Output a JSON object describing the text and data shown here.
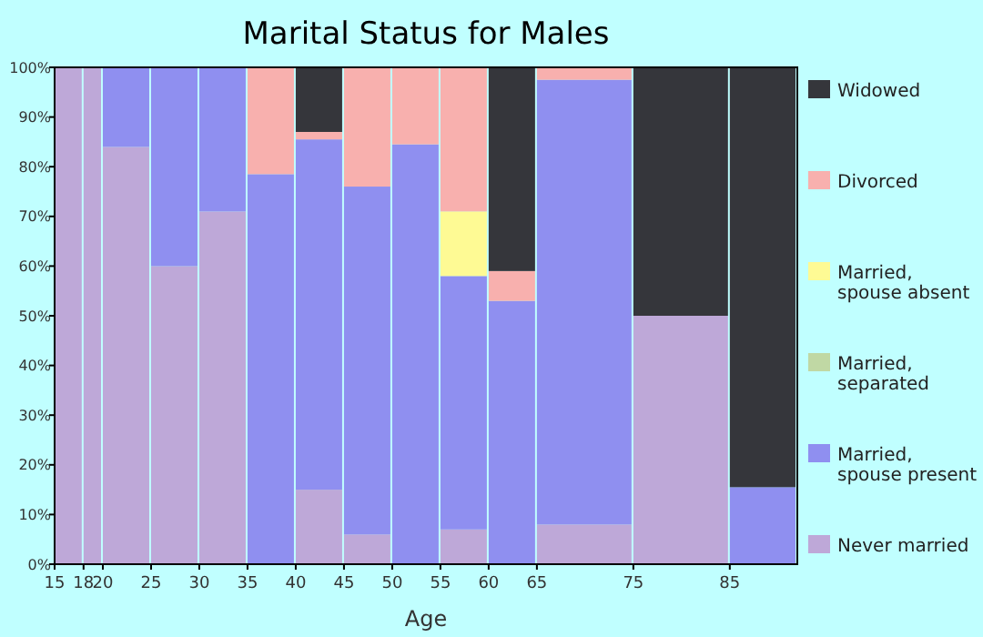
{
  "chart_data": {
    "type": "bar",
    "stacked": true,
    "title": "Marital Status for Males",
    "xlabel": "Age",
    "x": [
      16.5,
      19,
      22.5,
      27.5,
      32.5,
      37.5,
      42.5,
      47.5,
      52.5,
      57.5,
      62.5,
      70,
      80,
      88.5
    ],
    "xlim": [
      15,
      92
    ],
    "xticks": [
      15,
      18,
      20,
      25,
      30,
      35,
      40,
      45,
      50,
      55,
      60,
      65,
      75,
      85
    ],
    "ylim": [
      0,
      100
    ],
    "yticks": [
      {
        "value": 0,
        "label": "0%"
      },
      {
        "value": 10,
        "label": "10%"
      },
      {
        "value": 20,
        "label": "20%"
      },
      {
        "value": 30,
        "label": "30%"
      },
      {
        "value": 40,
        "label": "40%"
      },
      {
        "value": 50,
        "label": "50%"
      },
      {
        "value": 60,
        "label": "60%"
      },
      {
        "value": 70,
        "label": "70%"
      },
      {
        "value": 80,
        "label": "80%"
      },
      {
        "value": 90,
        "label": "90%"
      },
      {
        "value": 100,
        "label": "100%"
      }
    ],
    "grid": false,
    "legend": "right",
    "series": [
      {
        "name": "Never married",
        "color": "#bea8d8",
        "values": [
          100,
          100,
          84,
          60,
          71,
          0,
          15,
          6,
          0,
          7,
          0,
          8,
          50,
          0
        ]
      },
      {
        "name": "Married, spouse present",
        "color": "#8f8ff0",
        "values": [
          0,
          0,
          16,
          40,
          29,
          78.5,
          70.5,
          70,
          84.5,
          51,
          53,
          89.5,
          0,
          15.5
        ]
      },
      {
        "name": "Married, separated",
        "color": "#c0d8a4",
        "values": [
          0,
          0,
          0,
          0,
          0,
          0,
          0,
          0,
          0,
          0,
          0,
          0,
          0,
          0
        ]
      },
      {
        "name": "Married, spouse absent",
        "color": "#fefa94",
        "values": [
          0,
          0,
          0,
          0,
          0,
          0,
          0,
          0,
          0,
          13,
          0,
          0,
          0,
          0
        ]
      },
      {
        "name": "Divorced",
        "color": "#f8b0ae",
        "values": [
          0,
          0,
          0,
          0,
          0,
          21.5,
          1.5,
          24,
          15.5,
          29,
          6,
          2.5,
          0,
          0
        ]
      },
      {
        "name": "Widowed",
        "color": "#35363b",
        "values": [
          0,
          0,
          0,
          0,
          0,
          0,
          13,
          0,
          0,
          0,
          41,
          0,
          50,
          84.5
        ]
      }
    ]
  }
}
